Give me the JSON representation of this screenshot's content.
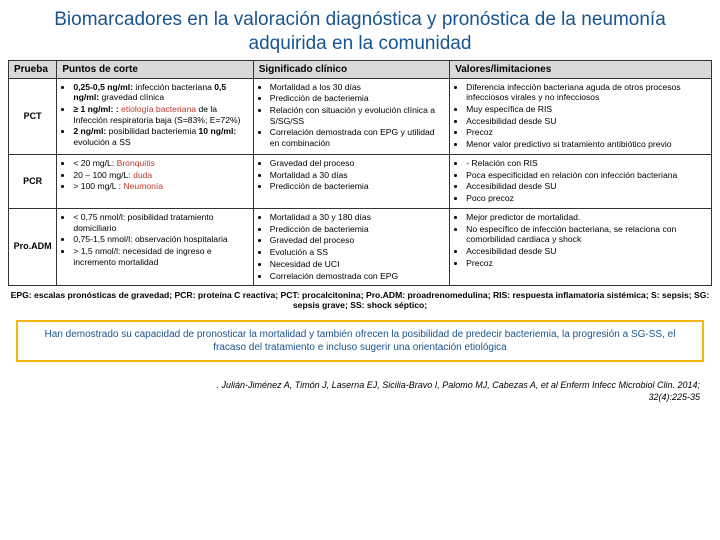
{
  "title": "Biomarcadores en la valoración diagnóstica y pronóstica de la neumonía adquirida en la comunidad",
  "headers": {
    "c0": "Prueba",
    "c1": "Puntos de corte",
    "c2": "Significado clínico",
    "c3": "Valores/limitaciones"
  },
  "rows": {
    "pct": {
      "label": "PCT",
      "p1a": "0,25-0,5 ng/ml:",
      "p1b": " infección bacteriana ",
      "p1c": "0,5 ng/ml:",
      "p1d": " gravedad clínica",
      "p2a": "≥ 1 ng/ml: :",
      "p2b": " etiología bacteriana ",
      "p2c": "de la Infección respiratoria baja (S=83%; E=72%)",
      "p3a": "2 ng/ml:",
      "p3b": " posibilidad bacteriemia ",
      "p3c": "10 ng/ml:",
      "p3d": " evolución a SS",
      "s1": "Mortalidad a los 30 días",
      "s2": "Predicción de bacteriemia",
      "s3": "Relación con situación y evolución clínica a S/SG/SS",
      "s4": "Correlación demostrada con EPG y utilidad en combinación",
      "v1": "Diferencia infección bacteriana aguda de otros procesos infecciosos virales y no infecciosos",
      "v2": "Muy específica de RIS",
      "v3": "Accesibilidad desde SU",
      "v4": "Precoz",
      "v5": "Menor valor predictivo si tratamiento antibiótico previo"
    },
    "pcr": {
      "label": "PCR",
      "p1a": "< 20 mg/L:",
      "p1b": " Bronquitis",
      "p2a": "20 – 100 mg/L:",
      "p2b": " duda",
      "p3a": "> 100 mg/L :",
      "p3b": " Neumonía",
      "s1": "Gravedad del proceso",
      "s2": "Mortalidad a 30 días",
      "s3": "Predicción de bacteriemia",
      "v1": "- Relación con RIS",
      "v2": "Poca especificidad en relación con infección bacteriana",
      "v3": "Accesibilidad desde SU",
      "v4": "Poco precoz"
    },
    "proadm": {
      "label": "Pro.ADM",
      "p1": "< 0,75 nmol/l: posibilidad tratamiento domiciliario",
      "p2": "0,75-1,5 nmol/l: observación hospitalaria",
      "p3": "> 1,5 nmol/l: necesidad de ingreso e incremento mortalidad",
      "s1": "Mortalidad a 30 y 180 días",
      "s2": "Predicción de bacteriemia",
      "s3": "Gravedad del proceso",
      "s4": "Evolución a SS",
      "s5": "Necesidad de UCI",
      "s6": "Correlación demostrada con EPG",
      "v1": "Mejor predictor de mortalidad.",
      "v2": "No específico de infección bacteriana, se relaciona con comorbilidad cardiaca y shock",
      "v3": "Accesibilidad desde SU",
      "v4": "Precoz"
    }
  },
  "footnote": "EPG: escalas pronósticas de gravedad; PCR: proteína C reactiva; PCT: procalcitonina; Pro.ADM: proadrenomedulina; RIS: respuesta inflamatoria sistémica; S: sepsis; SG: sepsis grave; SS: shock séptico;",
  "highlight": "Han demostrado su capacidad de pronosticar la mortalidad y también ofrecen la posibilidad de predecir bacteriemia, la progresión a SG-SS, el fracaso del tratamiento e incluso sugerir una orientación etiológica",
  "citation": ". Julián-Jiménez A, Timón J, Laserna EJ, Sicilia-Bravo I, Palomo MJ, Cabezas A, et al Enferm Infecc Microbiol Clin. 2014; 32(4):225-35"
}
